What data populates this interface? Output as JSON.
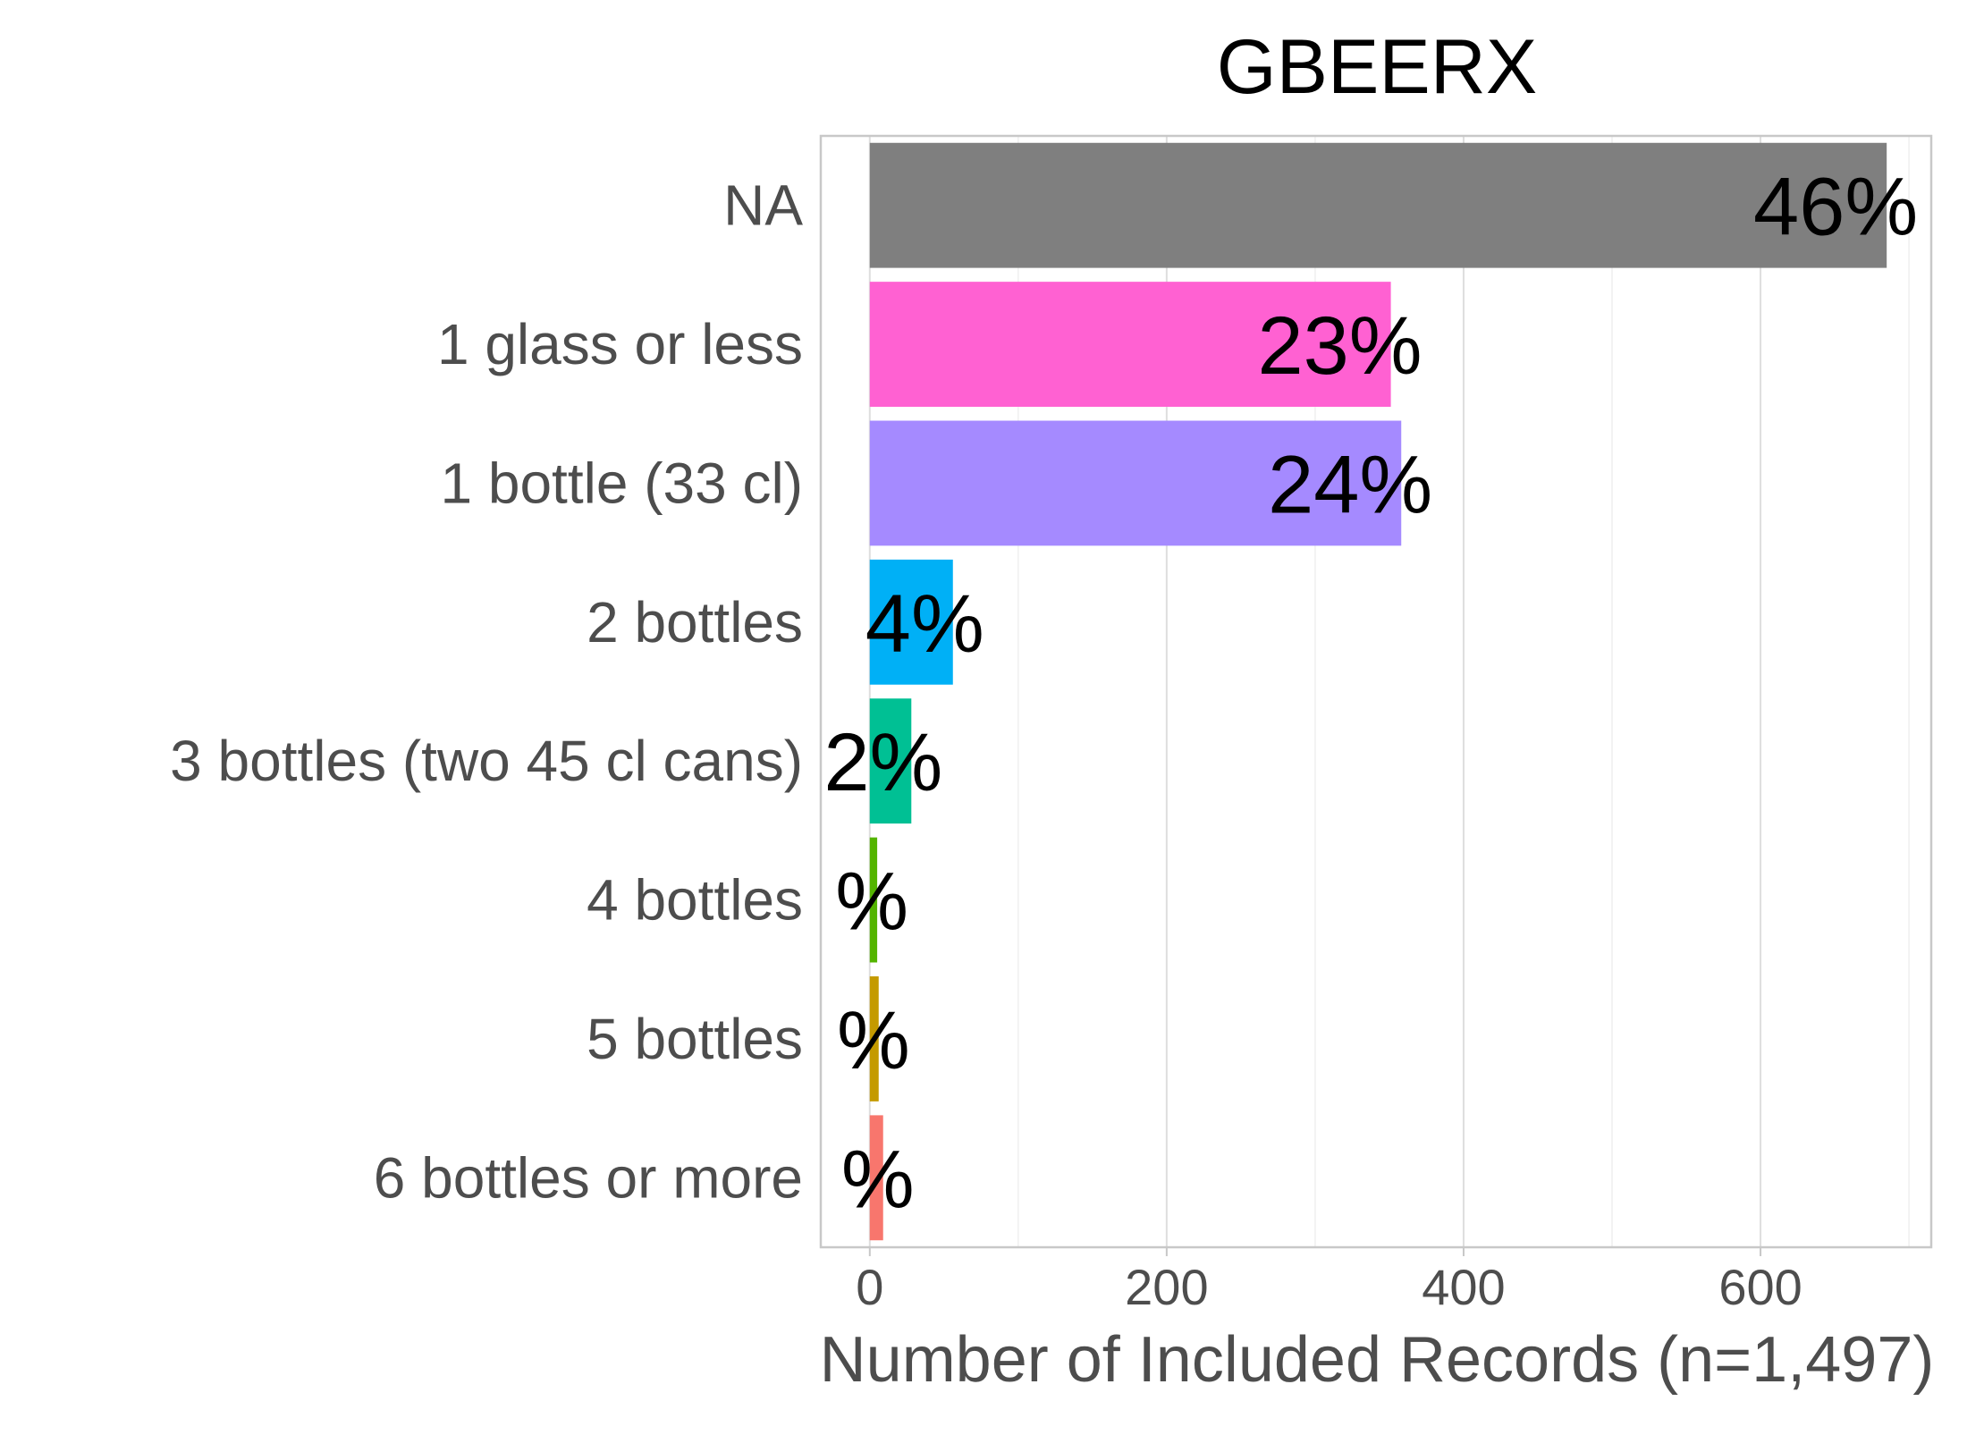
{
  "chart_data": {
    "type": "bar",
    "orientation": "horizontal",
    "title": "GBEERX",
    "xlabel": "Number of Included Records (n=1,497)",
    "ylabel": "",
    "xlim": [
      -33,
      715
    ],
    "xticks": [
      0,
      200,
      400,
      600
    ],
    "grid": true,
    "legend": "none",
    "categories": [
      "NA",
      "1 glass or less",
      "1 bottle (33 cl)",
      "2 bottles",
      "3 bottles (two 45 cl cans)",
      "4 bottles",
      "5 bottles",
      "6 bottles or more"
    ],
    "values": [
      685,
      351,
      358,
      56,
      28,
      5,
      6,
      9
    ],
    "labels": [
      "46%",
      "23%",
      "24%",
      "4%",
      "2%",
      "%",
      "%",
      "%"
    ],
    "colors": [
      "#7f7f7f",
      "#ff61d2",
      "#a58aff",
      "#00b0f6",
      "#00c094",
      "#53b400",
      "#c49a00",
      "#f8766d"
    ]
  }
}
